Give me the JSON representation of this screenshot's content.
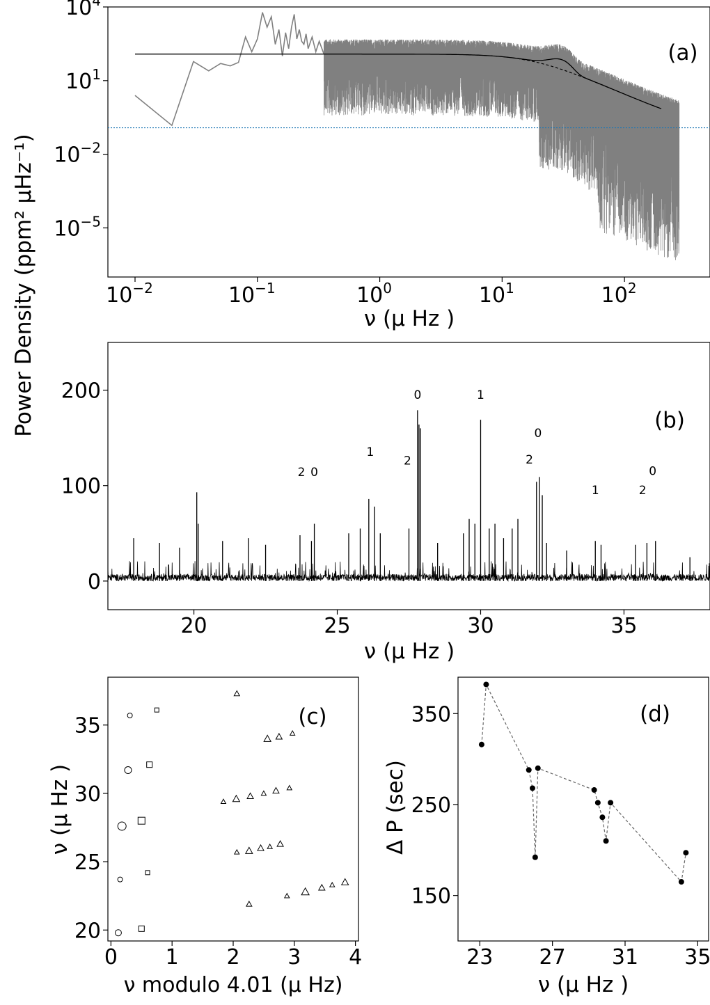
{
  "ylabel_shared": "Power Density (ppm² μHz⁻¹)",
  "chart_data": [
    {
      "panel": "a",
      "type": "line",
      "panel_label": "(a)",
      "xlabel": "ν (μ Hz )",
      "xscale": "log",
      "yscale": "log",
      "xlim": [
        0.006,
        500
      ],
      "ylim": [
        1e-07,
        10000
      ],
      "xticks": [
        {
          "value": 0.01,
          "label": "10",
          "exp": "−2"
        },
        {
          "value": 0.1,
          "label": "10",
          "exp": "−1"
        },
        {
          "value": 1,
          "label": "10",
          "exp": "0"
        },
        {
          "value": 10,
          "label": "10",
          "exp": "1"
        },
        {
          "value": 100,
          "label": "10",
          "exp": "2"
        }
      ],
      "yticks": [
        {
          "value": 10000,
          "label": "10",
          "exp": "4"
        },
        {
          "value": 10,
          "label": "10",
          "exp": "1"
        },
        {
          "value": 0.01,
          "label": "10",
          "exp": "−2"
        },
        {
          "value": 1e-05,
          "label": "10",
          "exp": "−5"
        }
      ],
      "colors": {
        "spectrum": "#808080",
        "model": "#000000",
        "noise_level": "#1f77b4"
      },
      "noise_level": 0.12,
      "model": {
        "plateau": 120,
        "fall_start": 1.5,
        "knee": 18,
        "bump_center": 29,
        "bump_height": 45
      },
      "spectrum_low_freq": {
        "x": [
          0.01,
          0.02,
          0.03,
          0.04,
          0.05,
          0.06,
          0.07,
          0.08,
          0.09,
          0.1,
          0.11,
          0.12,
          0.13,
          0.14,
          0.15,
          0.16,
          0.17,
          0.18,
          0.19,
          0.2,
          0.21,
          0.22,
          0.23,
          0.24,
          0.25,
          0.26,
          0.28,
          0.3,
          0.32,
          0.35
        ],
        "y": [
          2.5,
          0.15,
          60,
          25,
          50,
          40,
          55,
          600,
          150,
          500,
          6000,
          1500,
          4000,
          300,
          1200,
          100,
          900,
          200,
          1500,
          5000,
          500,
          1200,
          400,
          300,
          800,
          200,
          600,
          150,
          400,
          120
        ]
      },
      "spectrum_envelope": {
        "start": 0.35,
        "end": 280
      }
    },
    {
      "panel": "b",
      "type": "line",
      "panel_label": "(b)",
      "xlabel": "ν (μ Hz )",
      "xlim": [
        17,
        38
      ],
      "ylim": [
        -30,
        250
      ],
      "xticks": [
        20,
        25,
        30,
        35
      ],
      "yticks": [
        0,
        100,
        200
      ],
      "baseline_noise": 6,
      "peaks": [
        {
          "x": 17.9,
          "y": 45
        },
        {
          "x": 18.8,
          "y": 40
        },
        {
          "x": 19.5,
          "y": 35
        },
        {
          "x": 20.1,
          "y": 93
        },
        {
          "x": 20.15,
          "y": 60
        },
        {
          "x": 21.0,
          "y": 42
        },
        {
          "x": 21.9,
          "y": 45
        },
        {
          "x": 22.5,
          "y": 38
        },
        {
          "x": 23.7,
          "y": 48
        },
        {
          "x": 24.1,
          "y": 42
        },
        {
          "x": 24.2,
          "y": 60
        },
        {
          "x": 25.4,
          "y": 50
        },
        {
          "x": 25.8,
          "y": 55
        },
        {
          "x": 26.1,
          "y": 86
        },
        {
          "x": 26.3,
          "y": 78
        },
        {
          "x": 26.5,
          "y": 50
        },
        {
          "x": 27.5,
          "y": 55
        },
        {
          "x": 27.8,
          "y": 179
        },
        {
          "x": 27.85,
          "y": 164
        },
        {
          "x": 27.9,
          "y": 160
        },
        {
          "x": 28.5,
          "y": 40
        },
        {
          "x": 29.4,
          "y": 50
        },
        {
          "x": 29.6,
          "y": 65
        },
        {
          "x": 29.8,
          "y": 60
        },
        {
          "x": 30.0,
          "y": 169
        },
        {
          "x": 30.3,
          "y": 55
        },
        {
          "x": 30.5,
          "y": 60
        },
        {
          "x": 30.8,
          "y": 45
        },
        {
          "x": 31.1,
          "y": 55
        },
        {
          "x": 31.3,
          "y": 65
        },
        {
          "x": 31.95,
          "y": 104
        },
        {
          "x": 32.05,
          "y": 109
        },
        {
          "x": 32.15,
          "y": 90
        },
        {
          "x": 32.3,
          "y": 40
        },
        {
          "x": 33.0,
          "y": 32
        },
        {
          "x": 34.0,
          "y": 42
        },
        {
          "x": 34.2,
          "y": 38
        },
        {
          "x": 35.4,
          "y": 38
        },
        {
          "x": 35.8,
          "y": 40
        },
        {
          "x": 36.1,
          "y": 42
        },
        {
          "x": 37.3,
          "y": 25
        }
      ],
      "annotations": [
        {
          "text": "2",
          "x": 23.75,
          "y": 110
        },
        {
          "text": "0",
          "x": 24.2,
          "y": 110
        },
        {
          "text": "1",
          "x": 26.15,
          "y": 131
        },
        {
          "text": "2",
          "x": 27.45,
          "y": 122
        },
        {
          "text": "0",
          "x": 27.8,
          "y": 191
        },
        {
          "text": "1",
          "x": 30.0,
          "y": 191
        },
        {
          "text": "0",
          "x": 32.0,
          "y": 151
        },
        {
          "text": "2",
          "x": 31.7,
          "y": 123
        },
        {
          "text": "1",
          "x": 34.0,
          "y": 91
        },
        {
          "text": "2",
          "x": 35.65,
          "y": 91
        },
        {
          "text": "0",
          "x": 36.0,
          "y": 111
        }
      ]
    },
    {
      "panel": "c",
      "type": "scatter",
      "panel_label": "(c)",
      "xlabel": "ν modulo 4.01 (μ Hz)",
      "ylabel": "ν (μ Hz )",
      "xlim": [
        -0.05,
        4.05
      ],
      "ylim": [
        19.2,
        38.5
      ],
      "xticks": [
        0,
        1,
        2,
        3,
        4
      ],
      "yticks": [
        20,
        25,
        30,
        35
      ],
      "circles": [
        [
          0.12,
          19.8,
          7
        ],
        [
          0.15,
          23.7,
          5
        ],
        [
          0.18,
          27.6,
          10
        ],
        [
          0.28,
          31.7,
          8
        ],
        [
          0.31,
          35.7,
          5
        ]
      ],
      "squares": [
        [
          0.5,
          20.1,
          7
        ],
        [
          0.6,
          24.2,
          5
        ],
        [
          0.5,
          28.0,
          9
        ],
        [
          0.63,
          32.1,
          7
        ],
        [
          0.75,
          36.1,
          5
        ]
      ],
      "triangles": [
        [
          2.26,
          21.9,
          6
        ],
        [
          2.88,
          22.5,
          5
        ],
        [
          3.18,
          22.8,
          9
        ],
        [
          3.45,
          23.1,
          7
        ],
        [
          3.62,
          23.3,
          5
        ],
        [
          3.83,
          23.5,
          8
        ],
        [
          2.06,
          25.7,
          5
        ],
        [
          2.26,
          25.8,
          8
        ],
        [
          2.45,
          26.0,
          7
        ],
        [
          2.6,
          26.1,
          5
        ],
        [
          2.77,
          26.3,
          7
        ],
        [
          1.84,
          29.4,
          5
        ],
        [
          2.05,
          29.6,
          8
        ],
        [
          2.28,
          29.8,
          7
        ],
        [
          2.5,
          30.0,
          5
        ],
        [
          2.7,
          30.2,
          7
        ],
        [
          2.92,
          30.4,
          5
        ],
        [
          2.06,
          37.3,
          6
        ],
        [
          2.56,
          34.0,
          8
        ],
        [
          2.75,
          34.15,
          7
        ],
        [
          2.97,
          34.4,
          5
        ]
      ]
    },
    {
      "panel": "d",
      "type": "line",
      "panel_label": "(d)",
      "xlabel": "ν (μ Hz )",
      "ylabel": "Δ P (sec)",
      "xlim": [
        21.8,
        35.6
      ],
      "ylim": [
        100,
        390
      ],
      "xticks": [
        23,
        27,
        31,
        35
      ],
      "yticks": [
        150,
        250,
        350
      ],
      "x": [
        23.1,
        23.35,
        25.7,
        25.9,
        26.05,
        26.2,
        29.3,
        29.5,
        29.75,
        29.95,
        30.2,
        34.1,
        34.35
      ],
      "y": [
        316,
        382,
        288,
        268,
        192,
        290,
        266,
        252,
        236,
        210,
        252,
        165,
        197
      ],
      "order": [
        0,
        1,
        2,
        3,
        4,
        5,
        6,
        7,
        8,
        9,
        10,
        11,
        12
      ]
    }
  ]
}
